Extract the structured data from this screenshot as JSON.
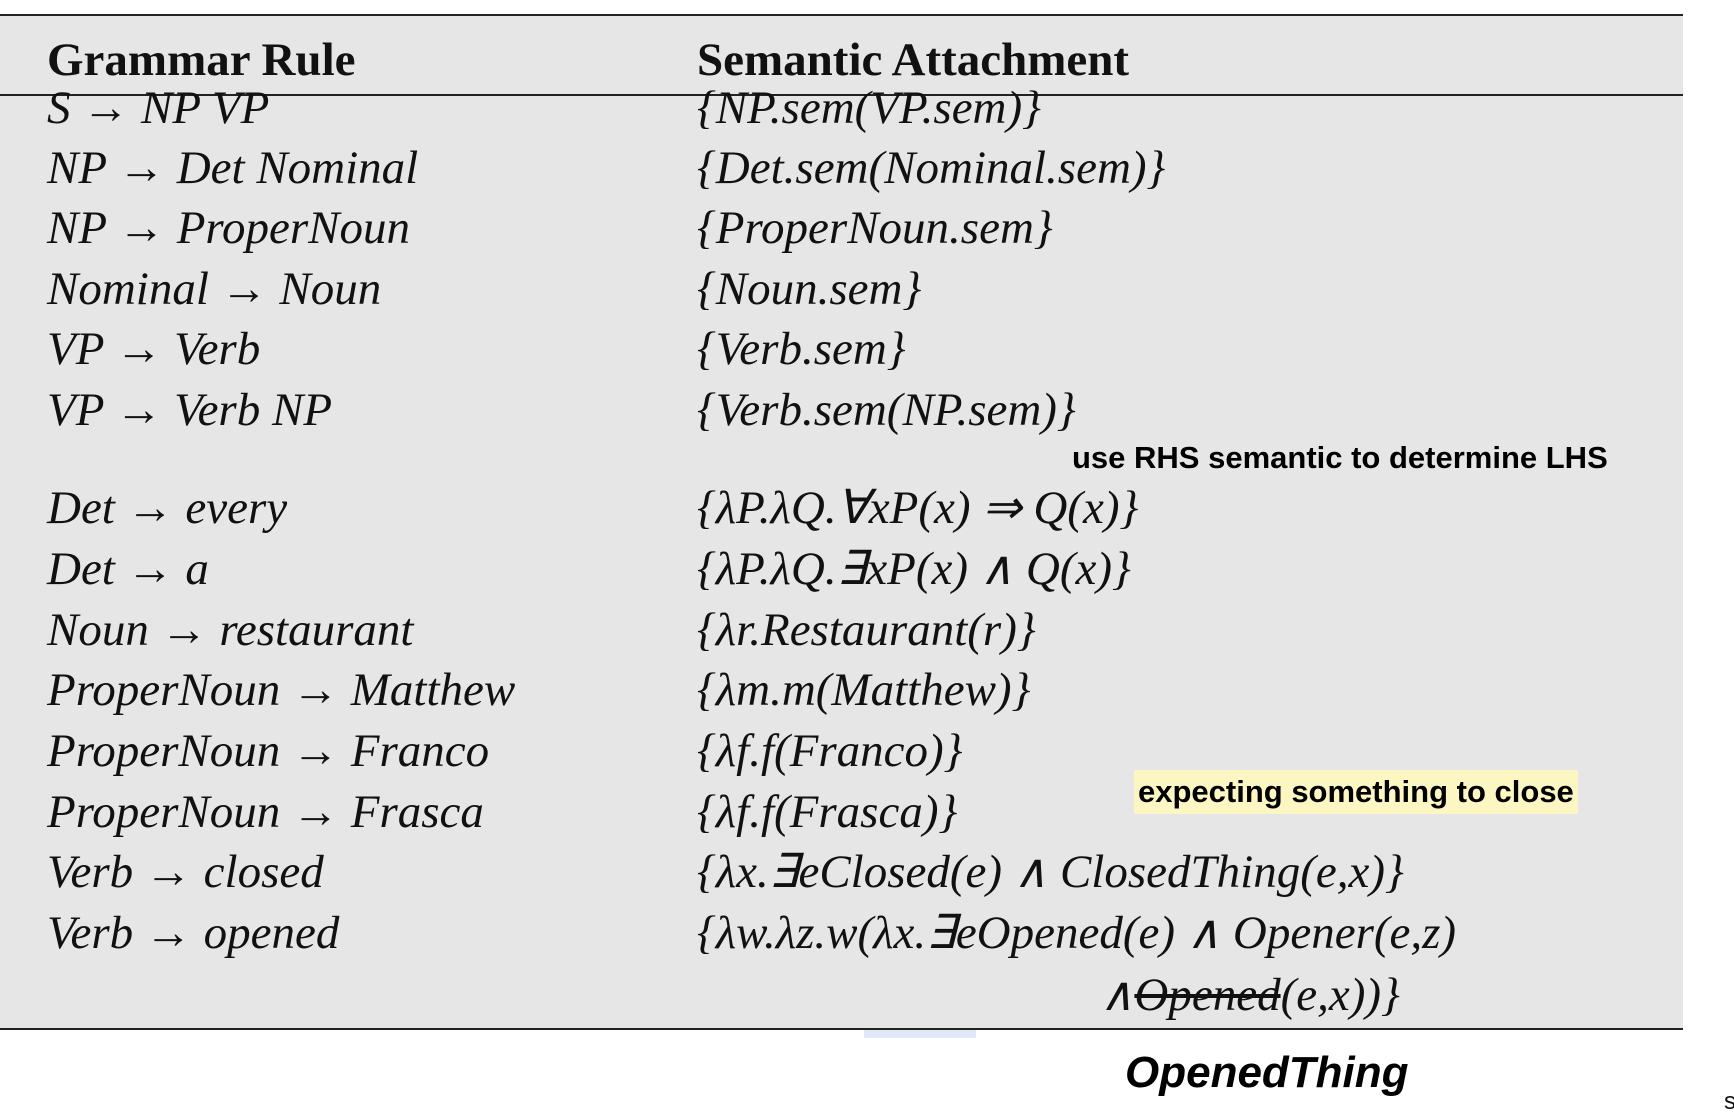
{
  "headers": {
    "rule": "Grammar Rule",
    "semantic": "Semantic Attachment"
  },
  "rows": [
    {
      "rule": "S → NP VP",
      "semantic": "{NP.sem(VP.sem)}"
    },
    {
      "rule": "NP → Det Nominal",
      "semantic": "{Det.sem(Nominal.sem)}"
    },
    {
      "rule": "NP → ProperNoun",
      "semantic": "{ProperNoun.sem}"
    },
    {
      "rule": "Nominal → Noun",
      "semantic": "{Noun.sem}"
    },
    {
      "rule": "VP → Verb",
      "semantic": "{Verb.sem}"
    },
    {
      "rule": "VP → Verb NP",
      "semantic": "{Verb.sem(NP.sem)}"
    },
    {
      "rule": "Det → every",
      "semantic": "{λP.λQ.∀xP(x) ⇒ Q(x)}"
    },
    {
      "rule": "Det → a",
      "semantic": "{λP.λQ.∃xP(x) ∧ Q(x)}"
    },
    {
      "rule": "Noun → restaurant",
      "semantic": "{λr.Restaurant(r)}"
    },
    {
      "rule": "ProperNoun → Matthew",
      "semantic": "{λm.m(Matthew)}"
    },
    {
      "rule": "ProperNoun → Franco",
      "semantic": "{λf.f(Franco)}"
    },
    {
      "rule": "ProperNoun → Frasca",
      "semantic": "{λf.f(Frasca)}"
    },
    {
      "rule": "Verb → closed",
      "semantic": "{λx.∃eClosed(e) ∧ ClosedThing(e,x)}"
    },
    {
      "rule": "Verb → opened",
      "semantic": "{λw.λz.w(λx.∃eOpened(e) ∧ Opener(e,z)"
    }
  ],
  "continuation": {
    "prefix": "∧",
    "struck": "Opened",
    "suffix": "(e,x))}"
  },
  "annotations": {
    "rhs_note": "use RHS semantic to determine LHS",
    "expect_note": "expecting something to close",
    "opened_note": "OpenedThing",
    "corner": "s"
  },
  "colors": {
    "panel": "#e6e6e6",
    "highlight": "#fcf7c2",
    "rule_line": "#222222"
  }
}
